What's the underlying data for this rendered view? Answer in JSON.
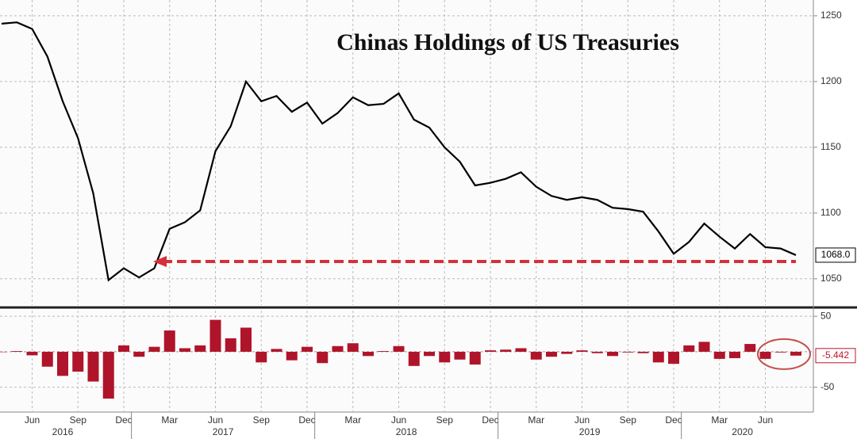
{
  "chart_data": [
    {
      "type": "line",
      "title": "Chinas Holdings of US Treasuries",
      "color": "#000000",
      "values": [
        1244,
        1245,
        1240,
        1219,
        1185,
        1157,
        1115,
        1049,
        1058,
        1051,
        1058,
        1088,
        1093,
        1102,
        1147,
        1166,
        1200,
        1185,
        1189,
        1177,
        1184,
        1168,
        1176,
        1188,
        1182,
        1183,
        1191,
        1171,
        1165,
        1150,
        1139,
        1121,
        1123,
        1126,
        1131,
        1120,
        1113,
        1110,
        1112,
        1110,
        1104,
        1103,
        1101,
        1086,
        1069,
        1078,
        1092,
        1082,
        1073,
        1084,
        1074,
        1073,
        1068
      ],
      "value_labels": [
        null,
        null,
        null,
        null,
        null,
        null,
        null,
        null,
        null,
        null,
        null,
        null,
        null,
        null,
        null,
        null,
        null,
        null,
        null,
        null,
        null,
        null,
        null,
        null,
        null,
        null,
        null,
        null,
        null,
        null,
        null,
        null,
        null,
        null,
        null,
        null,
        null,
        null,
        null,
        null,
        null,
        null,
        null,
        null,
        null,
        null,
        null,
        null,
        null,
        null,
        null,
        null,
        "1068.0"
      ],
      "ylim": [
        1030,
        1262
      ],
      "yticks": [
        1050,
        1100,
        1150,
        1200,
        1250
      ],
      "grid": true
    },
    {
      "type": "bar",
      "color": "#b0142a",
      "categories": [
        null,
        null,
        "Jun",
        null,
        null,
        "Sep",
        null,
        null,
        "Dec",
        null,
        null,
        "Mar",
        null,
        null,
        "Jun",
        null,
        null,
        "Sep",
        null,
        null,
        "Dec",
        null,
        null,
        "Mar",
        null,
        null,
        "Jun",
        null,
        null,
        "Sep",
        null,
        null,
        "Dec",
        null,
        null,
        "Mar",
        null,
        null,
        "Jun",
        null,
        null,
        "Sep",
        null,
        null,
        "Dec",
        null,
        null,
        "Mar",
        null,
        null,
        "Jun",
        null,
        null
      ],
      "years": [
        "2016",
        "2017",
        "2018",
        "2019",
        "2020"
      ],
      "values": [
        0,
        1,
        -5,
        -21,
        -34,
        -28,
        -42,
        -66,
        9,
        -7,
        7,
        30,
        5,
        9,
        45,
        19,
        34,
        -15,
        4,
        -12,
        7,
        -16,
        8,
        12,
        -6,
        1,
        8,
        -20,
        -6,
        -15,
        -11,
        -18,
        2,
        3,
        5,
        -11,
        -7,
        -3,
        2,
        -2,
        -6,
        -1,
        -2,
        -15,
        -17,
        9,
        14,
        -10,
        -9,
        11,
        -10,
        -1,
        -5.442
      ],
      "value_labels": [
        null,
        null,
        null,
        null,
        null,
        null,
        null,
        null,
        null,
        null,
        null,
        null,
        null,
        null,
        null,
        null,
        null,
        null,
        null,
        null,
        null,
        null,
        null,
        null,
        null,
        null,
        null,
        null,
        null,
        null,
        null,
        null,
        null,
        null,
        null,
        null,
        null,
        null,
        null,
        null,
        null,
        null,
        null,
        null,
        null,
        null,
        null,
        null,
        null,
        null,
        null,
        null,
        "-5.442"
      ],
      "ylim": [
        -85,
        58
      ],
      "yticks": [
        -50,
        50
      ],
      "grid": true
    }
  ]
}
